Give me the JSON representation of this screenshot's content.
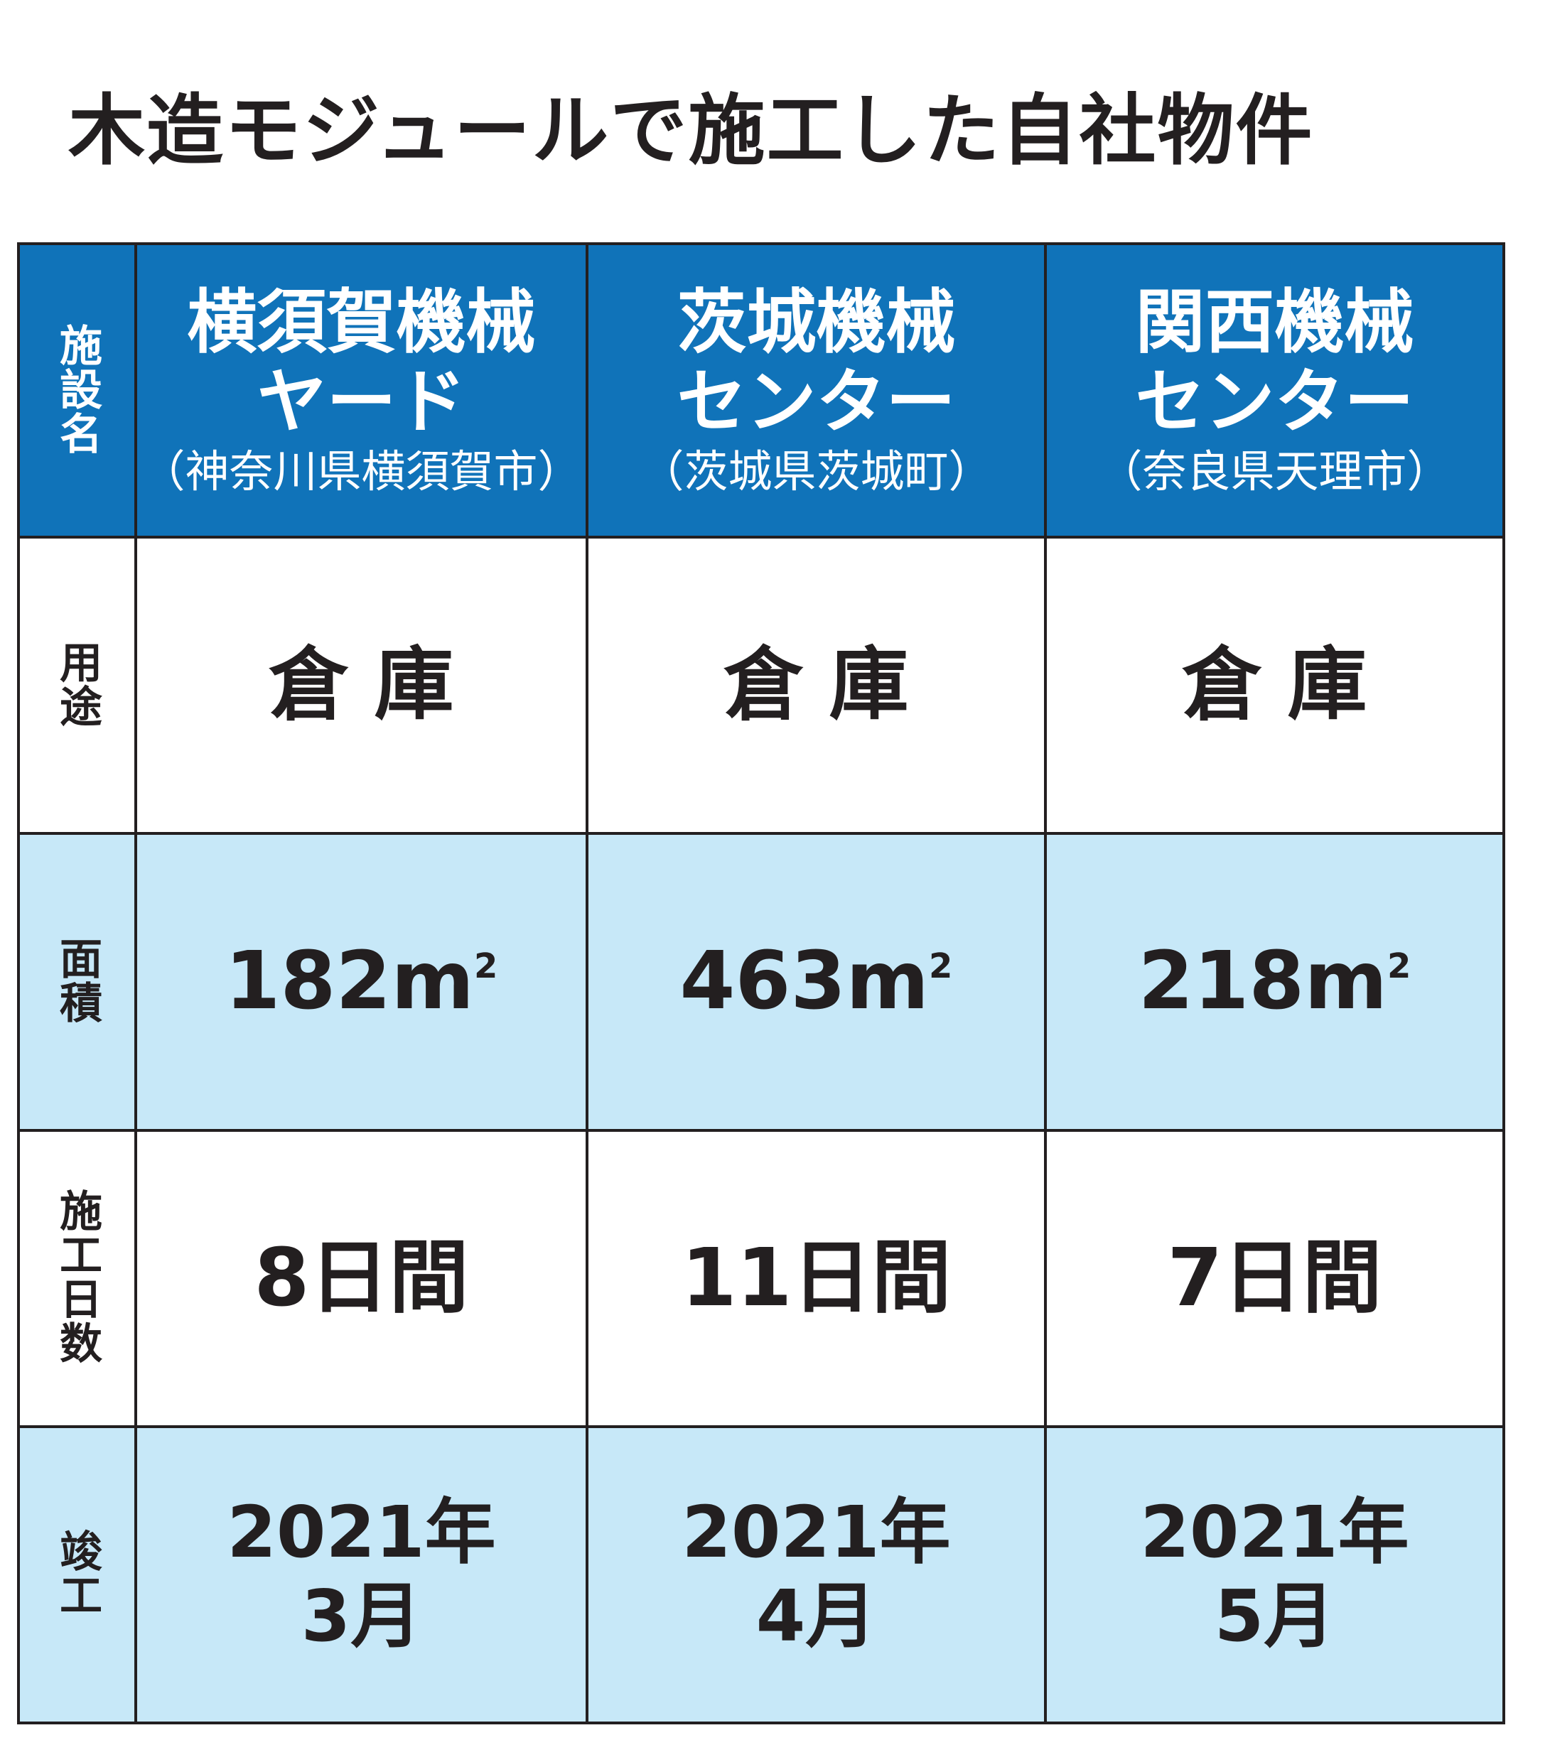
{
  "title": "木造モジュールで施工した自社物件",
  "row_labels": {
    "facility": "施設名",
    "use": "用途",
    "area": "面積",
    "days": "施工日数",
    "completed": "竣工"
  },
  "facilities": [
    {
      "name_line1": "横須賀機械",
      "name_line2": "ヤード",
      "location": "（神奈川県横須賀市）",
      "use": "倉庫",
      "area_value": "182m",
      "area_sup": "2",
      "days": "8日間",
      "completed_year": "2021年",
      "completed_month": "3月"
    },
    {
      "name_line1": "茨城機械",
      "name_line2": "センター",
      "location": "（茨城県茨城町）",
      "use": "倉庫",
      "area_value": "463m",
      "area_sup": "2",
      "days": "11日間",
      "completed_year": "2021年",
      "completed_month": "4月"
    },
    {
      "name_line1": "関西機械",
      "name_line2": "センター",
      "location": "（奈良県天理市）",
      "use": "倉庫",
      "area_value": "218m",
      "area_sup": "2",
      "days": "7日間",
      "completed_year": "2021年",
      "completed_month": "5月"
    }
  ],
  "colors": {
    "header_bg": "#1073b9",
    "alt_row_bg": "#c7e8f8",
    "border": "#231f20",
    "text": "#231f20"
  }
}
